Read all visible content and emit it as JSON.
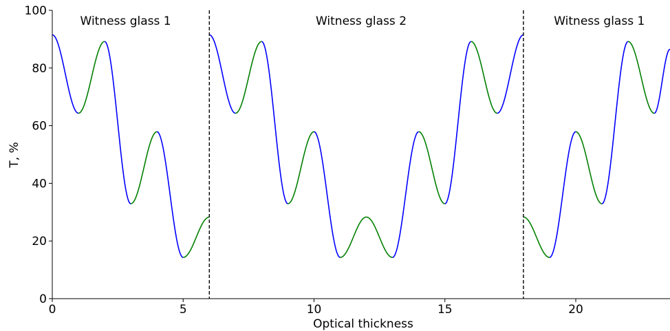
{
  "chart_data": {
    "type": "line",
    "xlabel": "Optical thickness",
    "ylabel": "T, %",
    "xlim": [
      0,
      23.6
    ],
    "ylim": [
      0,
      100
    ],
    "xticks": [
      0,
      5,
      10,
      15,
      20
    ],
    "yticks": [
      0,
      20,
      40,
      60,
      80,
      100
    ],
    "grid": false,
    "colors": {
      "blue_segment": "#0000ff",
      "green_segment": "#008000",
      "divider": "#000000"
    },
    "dividers_x": [
      6,
      18
    ],
    "regions": [
      {
        "label": "Witness glass 1",
        "x_center": 2.8
      },
      {
        "label": "Witness glass 2",
        "x_center": 11.8
      },
      {
        "label": "Witness glass 1",
        "x_center": 20.9
      }
    ],
    "series": [
      {
        "points": [
          [
            0,
            91.5
          ],
          [
            1,
            64.3
          ],
          [
            2,
            89.2
          ],
          [
            3,
            32.9
          ],
          [
            4,
            57.9
          ],
          [
            5,
            14.3
          ],
          [
            6,
            28.3
          ],
          [
            6,
            91.5
          ],
          [
            7,
            64.3
          ],
          [
            8,
            89.2
          ],
          [
            9,
            32.9
          ],
          [
            10,
            57.9
          ],
          [
            11,
            14.3
          ],
          [
            12,
            28.3
          ],
          [
            13,
            14.3
          ],
          [
            14,
            57.9
          ],
          [
            15,
            32.9
          ],
          [
            16,
            89.2
          ],
          [
            17,
            64.3
          ],
          [
            18,
            91.5
          ],
          [
            18,
            28.3
          ],
          [
            19,
            14.3
          ],
          [
            20,
            57.9
          ],
          [
            21,
            32.9
          ],
          [
            22,
            89.2
          ],
          [
            23,
            64.3
          ],
          [
            23.6,
            86.5
          ]
        ],
        "segment_colors": [
          "blue",
          "green",
          "blue",
          "green",
          "blue",
          "green",
          null,
          "blue",
          "green",
          "blue",
          "green",
          "blue",
          "green",
          "green",
          "blue",
          "green",
          "blue",
          "green",
          "blue",
          null,
          "green",
          "blue",
          "green",
          "blue",
          "green",
          "blue"
        ]
      }
    ]
  }
}
